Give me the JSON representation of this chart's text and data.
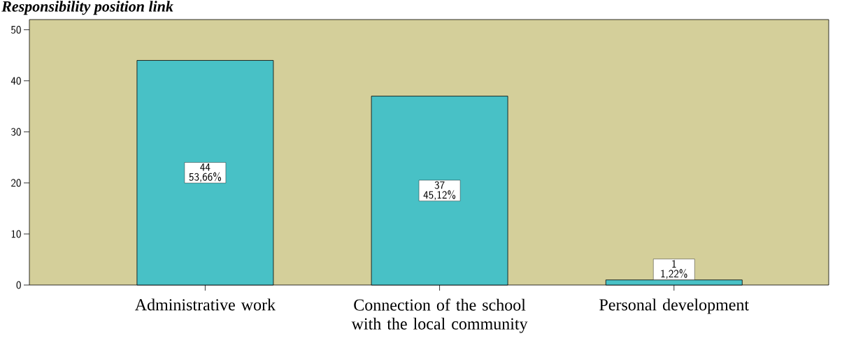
{
  "chart_data": {
    "type": "bar",
    "title": "Responsibility position link",
    "categories": [
      "Administrative work",
      "Connection of the school with the local community",
      "Personal development"
    ],
    "values": [
      44,
      37,
      1
    ],
    "color": "#48c1c6",
    "value_labels": [
      "44\n53,66%",
      "37\n45,12%",
      "1\n1,22%"
    ],
    "ylim": [
      0,
      52
    ],
    "yticks": [
      0,
      10,
      20,
      30,
      40,
      50
    ],
    "grid": false
  }
}
